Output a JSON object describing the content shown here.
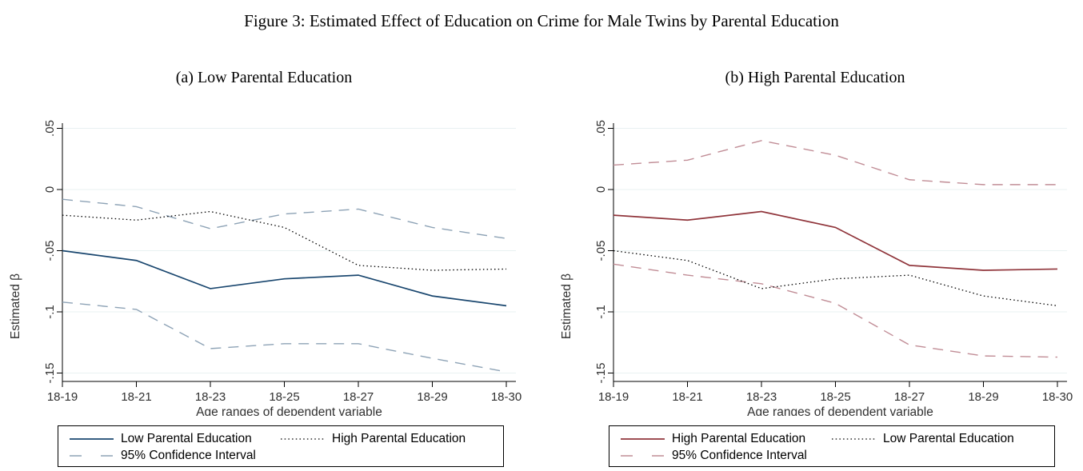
{
  "figure": {
    "title": "Figure 3: Estimated Effect of Education on Crime for Male Twins by Parental Education"
  },
  "colors": {
    "low_parental_solid": "#1a476f",
    "high_parental_solid": "#90353b",
    "ci_low_dashed": "#8ea3b6",
    "ci_high_dashed": "#c18d96",
    "dotted_line": "#000000",
    "gridline": "#e9f1f2"
  },
  "chart_data": [
    {
      "type": "line",
      "title": "(a) Low Parental Education",
      "xlabel": "Age ranges of dependent variable",
      "ylabel": "Estimated β",
      "categories": [
        "18-19",
        "18-21",
        "18-23",
        "18-25",
        "18-27",
        "18-29",
        "18-30"
      ],
      "yticks": {
        "labels": [
          ".05",
          "0",
          "-.05",
          "-.1",
          "-.15"
        ],
        "values": [
          0.05,
          0,
          -0.05,
          -0.1,
          -0.15
        ]
      },
      "ylim": [
        -0.155,
        0.055
      ],
      "grid": true,
      "legend_position": "below",
      "series": [
        {
          "name": "95% Confidence Interval (upper)",
          "style": "dashed",
          "color": "#8ea3b6",
          "values": [
            -0.008,
            -0.014,
            -0.032,
            -0.02,
            -0.016,
            -0.031,
            -0.04
          ]
        },
        {
          "name": "95% Confidence Interval (lower)",
          "style": "dashed",
          "color": "#8ea3b6",
          "values": [
            -0.092,
            -0.098,
            -0.13,
            -0.126,
            -0.126,
            -0.138,
            -0.149
          ]
        },
        {
          "name": "High Parental Education",
          "style": "dotted",
          "color": "#000000",
          "values": [
            -0.021,
            -0.025,
            -0.018,
            -0.031,
            -0.062,
            -0.066,
            -0.065
          ]
        },
        {
          "name": "Low Parental Education",
          "style": "solid",
          "color": "#1a476f",
          "values": [
            -0.05,
            -0.058,
            -0.081,
            -0.073,
            -0.07,
            -0.087,
            -0.095
          ]
        }
      ],
      "legend": {
        "row1": [
          {
            "label": "Low Parental Education",
            "style": "solid",
            "color": "#1a476f"
          },
          {
            "label": "High Parental Education",
            "style": "dotted",
            "color": "#000000"
          }
        ],
        "row2": [
          {
            "label": "95% Confidence Interval",
            "style": "dashed",
            "color": "#8ea3b6"
          }
        ]
      }
    },
    {
      "type": "line",
      "title": "(b) High Parental Education",
      "xlabel": "Age ranges of dependent variable",
      "ylabel": "Estimated β",
      "categories": [
        "18-19",
        "18-21",
        "18-23",
        "18-25",
        "18-27",
        "18-29",
        "18-30"
      ],
      "yticks": {
        "labels": [
          ".05",
          "0",
          "-.05",
          "-.1",
          "-.15"
        ],
        "values": [
          0.05,
          0,
          -0.05,
          -0.1,
          -0.15
        ]
      },
      "ylim": [
        -0.155,
        0.055
      ],
      "grid": true,
      "legend_position": "below",
      "series": [
        {
          "name": "95% Confidence Interval (upper)",
          "style": "dashed",
          "color": "#c18d96",
          "values": [
            0.02,
            0.024,
            0.04,
            0.028,
            0.008,
            0.004,
            0.004
          ]
        },
        {
          "name": "95% Confidence Interval (lower)",
          "style": "dashed",
          "color": "#c18d96",
          "values": [
            -0.061,
            -0.07,
            -0.077,
            -0.093,
            -0.127,
            -0.136,
            -0.137
          ]
        },
        {
          "name": "Low Parental Education",
          "style": "dotted",
          "color": "#000000",
          "values": [
            -0.05,
            -0.058,
            -0.081,
            -0.073,
            -0.07,
            -0.087,
            -0.095
          ]
        },
        {
          "name": "High Parental Education",
          "style": "solid",
          "color": "#90353b",
          "values": [
            -0.021,
            -0.025,
            -0.018,
            -0.031,
            -0.062,
            -0.066,
            -0.065
          ]
        }
      ],
      "legend": {
        "row1": [
          {
            "label": "High Parental Education",
            "style": "solid",
            "color": "#90353b"
          },
          {
            "label": "Low Parental Education",
            "style": "dotted",
            "color": "#000000"
          }
        ],
        "row2": [
          {
            "label": "95% Confidence Interval",
            "style": "dashed",
            "color": "#c18d96"
          }
        ]
      }
    }
  ]
}
